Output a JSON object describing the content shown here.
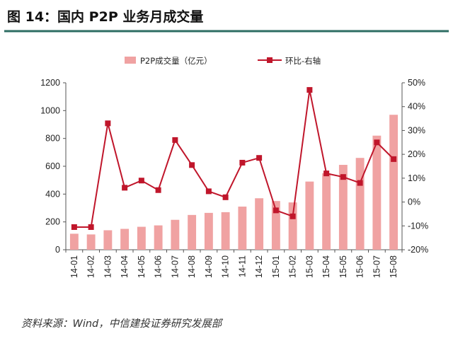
{
  "chart_data": {
    "type": "bar",
    "title": "图 14：国内 P2P 业务月成交量",
    "source": "资料来源：Wind，中信建投证券研究发展部",
    "categories": [
      "14-01",
      "14-02",
      "14-03",
      "14-04",
      "14-05",
      "14-06",
      "14-07",
      "14-08",
      "14-09",
      "14-10",
      "14-11",
      "14-12",
      "15-01",
      "15-02",
      "15-03",
      "15-04",
      "15-05",
      "15-06",
      "15-07",
      "15-08"
    ],
    "series": [
      {
        "name": "P2P成交量（亿元）",
        "type": "bar",
        "axis": "left",
        "color": "#f0a2a2",
        "values": [
          115,
          110,
          140,
          150,
          165,
          175,
          215,
          250,
          265,
          270,
          310,
          370,
          350,
          340,
          490,
          550,
          610,
          660,
          820,
          970
        ]
      },
      {
        "name": "环比-右轴",
        "type": "line",
        "axis": "right",
        "color": "#c0162b",
        "values": [
          -10.5,
          -10.5,
          33,
          6,
          9,
          5,
          26,
          15.5,
          4.5,
          2,
          16.5,
          18.5,
          -3.5,
          -6,
          47,
          12,
          10.5,
          8,
          25,
          18
        ]
      }
    ],
    "y_left": {
      "ylim": [
        0,
        1200
      ],
      "ticks": [
        "0",
        "200",
        "400",
        "600",
        "800",
        "1000",
        "1200"
      ]
    },
    "y_right": {
      "ylim": [
        -20,
        50
      ],
      "ticks": [
        "-20%",
        "-10%",
        "0%",
        "10%",
        "20%",
        "30%",
        "40%",
        "50%"
      ]
    },
    "legend": {
      "position": "top-center",
      "bar_label": "P2P成交量（亿元）",
      "line_label": "环比-右轴"
    },
    "grid": false
  }
}
